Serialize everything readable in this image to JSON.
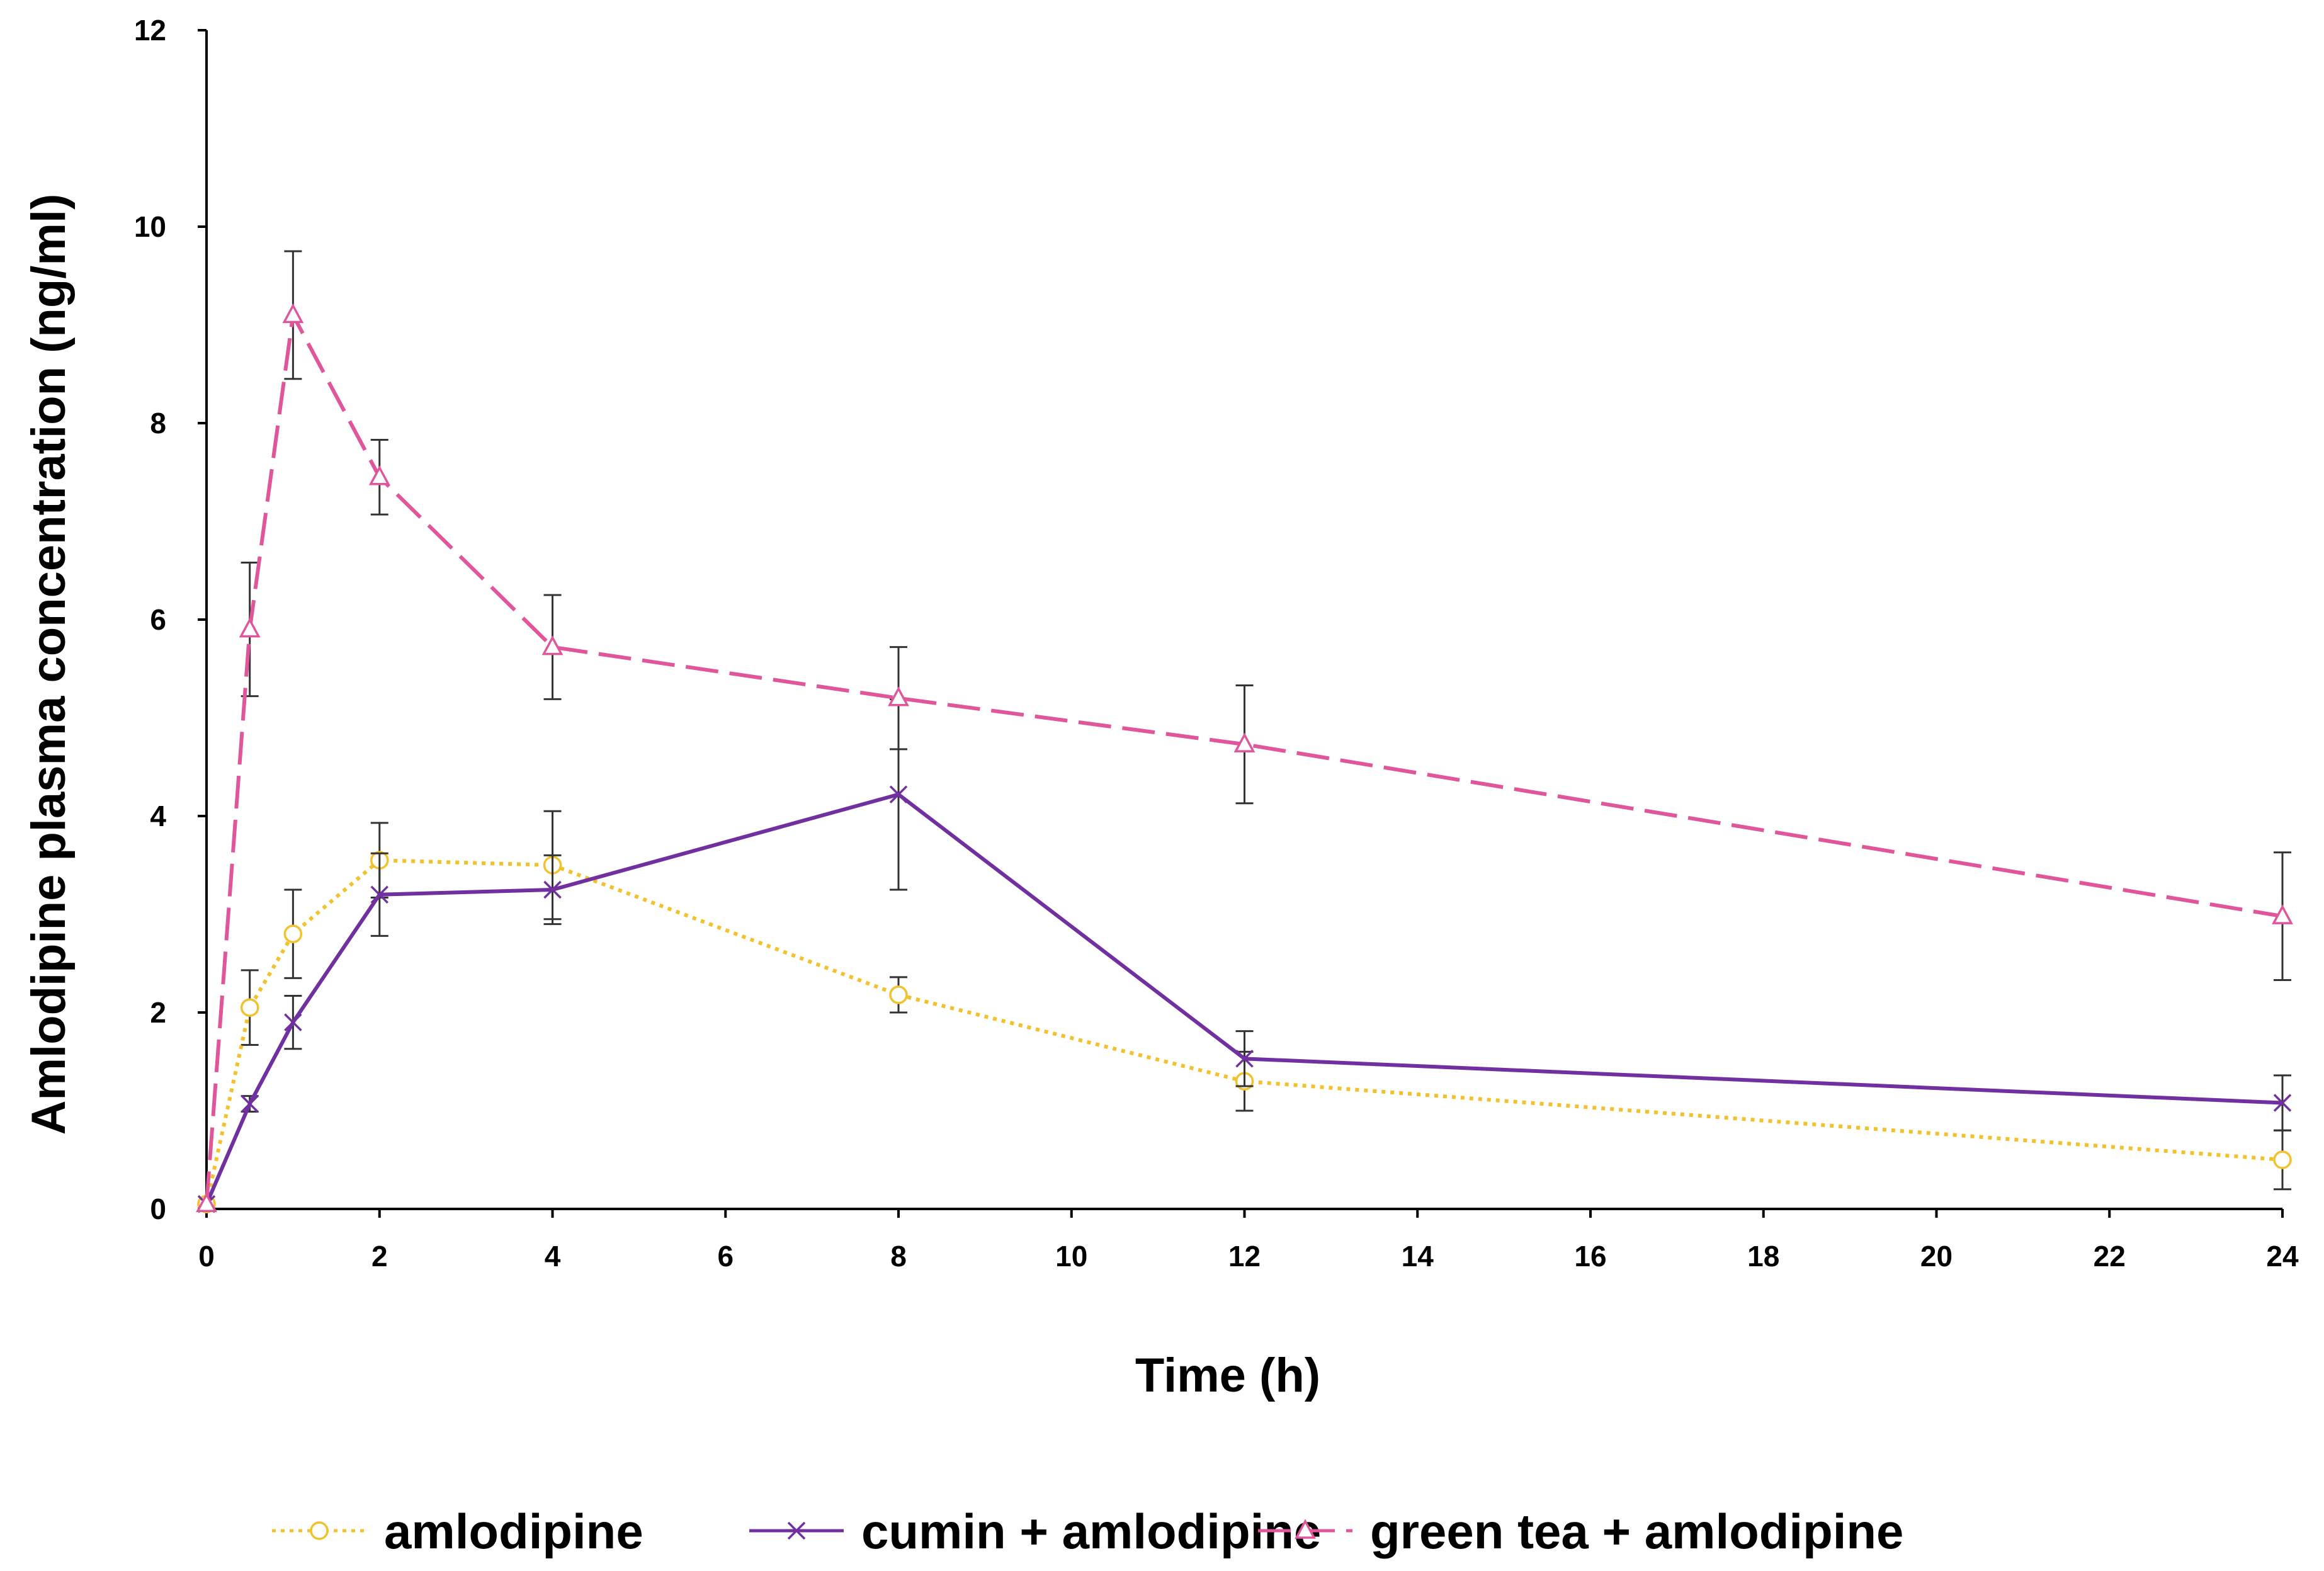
{
  "chart_data": {
    "type": "line",
    "title": "",
    "xlabel": "Time (h)",
    "ylabel": "Amlodipine plasma concentration (ng/ml)",
    "xlim": [
      0,
      24
    ],
    "ylim": [
      0,
      12
    ],
    "x_ticks": [
      0,
      2,
      4,
      6,
      8,
      10,
      12,
      14,
      16,
      18,
      20,
      22,
      24
    ],
    "y_ticks": [
      0,
      2,
      4,
      6,
      8,
      10,
      12
    ],
    "grid": false,
    "legend_position": "bottom",
    "series": [
      {
        "name": "amlodipine",
        "color": "#f2c12e",
        "line_style": "dotted",
        "marker": "circle",
        "x": [
          0,
          0.5,
          1,
          2,
          4,
          8,
          12,
          24
        ],
        "y": [
          0.05,
          2.05,
          2.8,
          3.55,
          3.5,
          2.18,
          1.3,
          0.5
        ],
        "error": [
          0,
          0.38,
          0.45,
          0.38,
          0.55,
          0.18,
          0.3,
          0.3
        ]
      },
      {
        "name": "cumin + amlodipine",
        "color": "#7030a0",
        "line_style": "solid",
        "marker": "x",
        "x": [
          0,
          0.5,
          1,
          2,
          4,
          8,
          12,
          24
        ],
        "y": [
          0.05,
          1.07,
          1.9,
          3.2,
          3.25,
          4.22,
          1.53,
          1.08
        ],
        "error": [
          0,
          0.08,
          0.27,
          0.42,
          0.35,
          0.97,
          0.28,
          0.28
        ]
      },
      {
        "name": "green tea + amlodipine",
        "color": "#e0569b",
        "line_style": "dashed",
        "marker": "triangle",
        "x": [
          0,
          0.5,
          1,
          2,
          4,
          8,
          12,
          24
        ],
        "y": [
          0.05,
          5.9,
          9.1,
          7.45,
          5.72,
          5.2,
          4.73,
          2.98
        ],
        "error": [
          0,
          0.68,
          0.65,
          0.38,
          0.53,
          0.52,
          0.6,
          0.65
        ]
      }
    ]
  }
}
